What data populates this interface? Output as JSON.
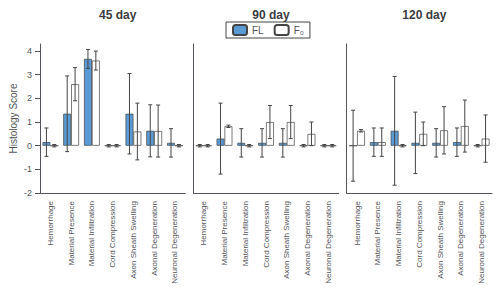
{
  "chart_data": [
    {
      "type": "bar",
      "title": "45 day",
      "categories": [
        "Hemorrhage",
        "Material Presence",
        "Material Infiltration",
        "Cord Compression",
        "Axon Sheath Swelling",
        "Axonal Degeneration",
        "Neuronal Degeneration"
      ],
      "series": [
        {
          "name": "FL",
          "color": "#5b9bd5",
          "values": [
            0.15,
            1.35,
            3.67,
            0.0,
            1.35,
            0.63,
            0.12
          ],
          "errors": [
            0.6,
            1.6,
            0.4,
            0.05,
            1.7,
            1.1,
            0.6
          ]
        },
        {
          "name": "F₀",
          "color": "#ffffff",
          "values": [
            0.0,
            2.6,
            3.6,
            0.0,
            0.6,
            0.62,
            0.0
          ],
          "errors": [
            0.05,
            0.7,
            0.4,
            0.05,
            1.2,
            1.1,
            0.05
          ]
        }
      ],
      "ylabel": "Histology Score",
      "ylim": [
        -2,
        4.3
      ],
      "yticks": [
        -2,
        -1,
        0,
        1,
        2,
        3,
        4
      ]
    },
    {
      "type": "bar",
      "title": "90 day",
      "categories": [
        "Hemorrhage",
        "Material Presence",
        "Material Infiltration",
        "Cord Compression",
        "Axon Sheath Swelling",
        "Axonal Degeneration",
        "Neuronal Degeneration"
      ],
      "series": [
        {
          "name": "FL",
          "color": "#5b9bd5",
          "values": [
            0.0,
            0.3,
            0.12,
            0.12,
            0.12,
            0.0,
            0.0
          ],
          "errors": [
            0.05,
            1.5,
            0.6,
            0.6,
            0.6,
            0.05,
            0.05
          ]
        },
        {
          "name": "F₀",
          "color": "#ffffff",
          "values": [
            0.0,
            0.82,
            0.0,
            1.0,
            1.0,
            0.5,
            0.0
          ],
          "errors": [
            0.05,
            0.05,
            0.05,
            0.7,
            0.7,
            0.5,
            0.05
          ]
        }
      ],
      "ylim": [
        -2,
        4.3
      ],
      "yticks": [
        -2,
        -1,
        0,
        1,
        2,
        3,
        4
      ],
      "legend": "top",
      "tick_labels": "x"
    },
    {
      "type": "bar",
      "title": "120 day",
      "categories": [
        "Hemorrhage",
        "Material Presence",
        "Material Infiltration",
        "Cord Compression",
        "Axon Sheath Swelling",
        "Axonal Degeneration",
        "Neuronal Degeneration"
      ],
      "series": [
        {
          "name": "FL",
          "color": "#5b9bd5",
          "values": [
            0.0,
            0.15,
            0.63,
            0.12,
            0.12,
            0.15,
            0.0
          ],
          "errors": [
            1.5,
            0.6,
            2.3,
            1.3,
            0.6,
            0.6,
            0.05
          ]
        },
        {
          "name": "F₀",
          "color": "#ffffff",
          "values": [
            0.63,
            0.15,
            0.0,
            0.5,
            0.65,
            0.83,
            0.3
          ],
          "errors": [
            0.05,
            0.6,
            0.05,
            0.5,
            1.0,
            1.1,
            1.0
          ]
        }
      ],
      "ylim": [
        -2,
        4.3
      ],
      "yticks": [
        -2,
        -1,
        0,
        1,
        2,
        3,
        4
      ],
      "tick_labels": "x"
    }
  ]
}
